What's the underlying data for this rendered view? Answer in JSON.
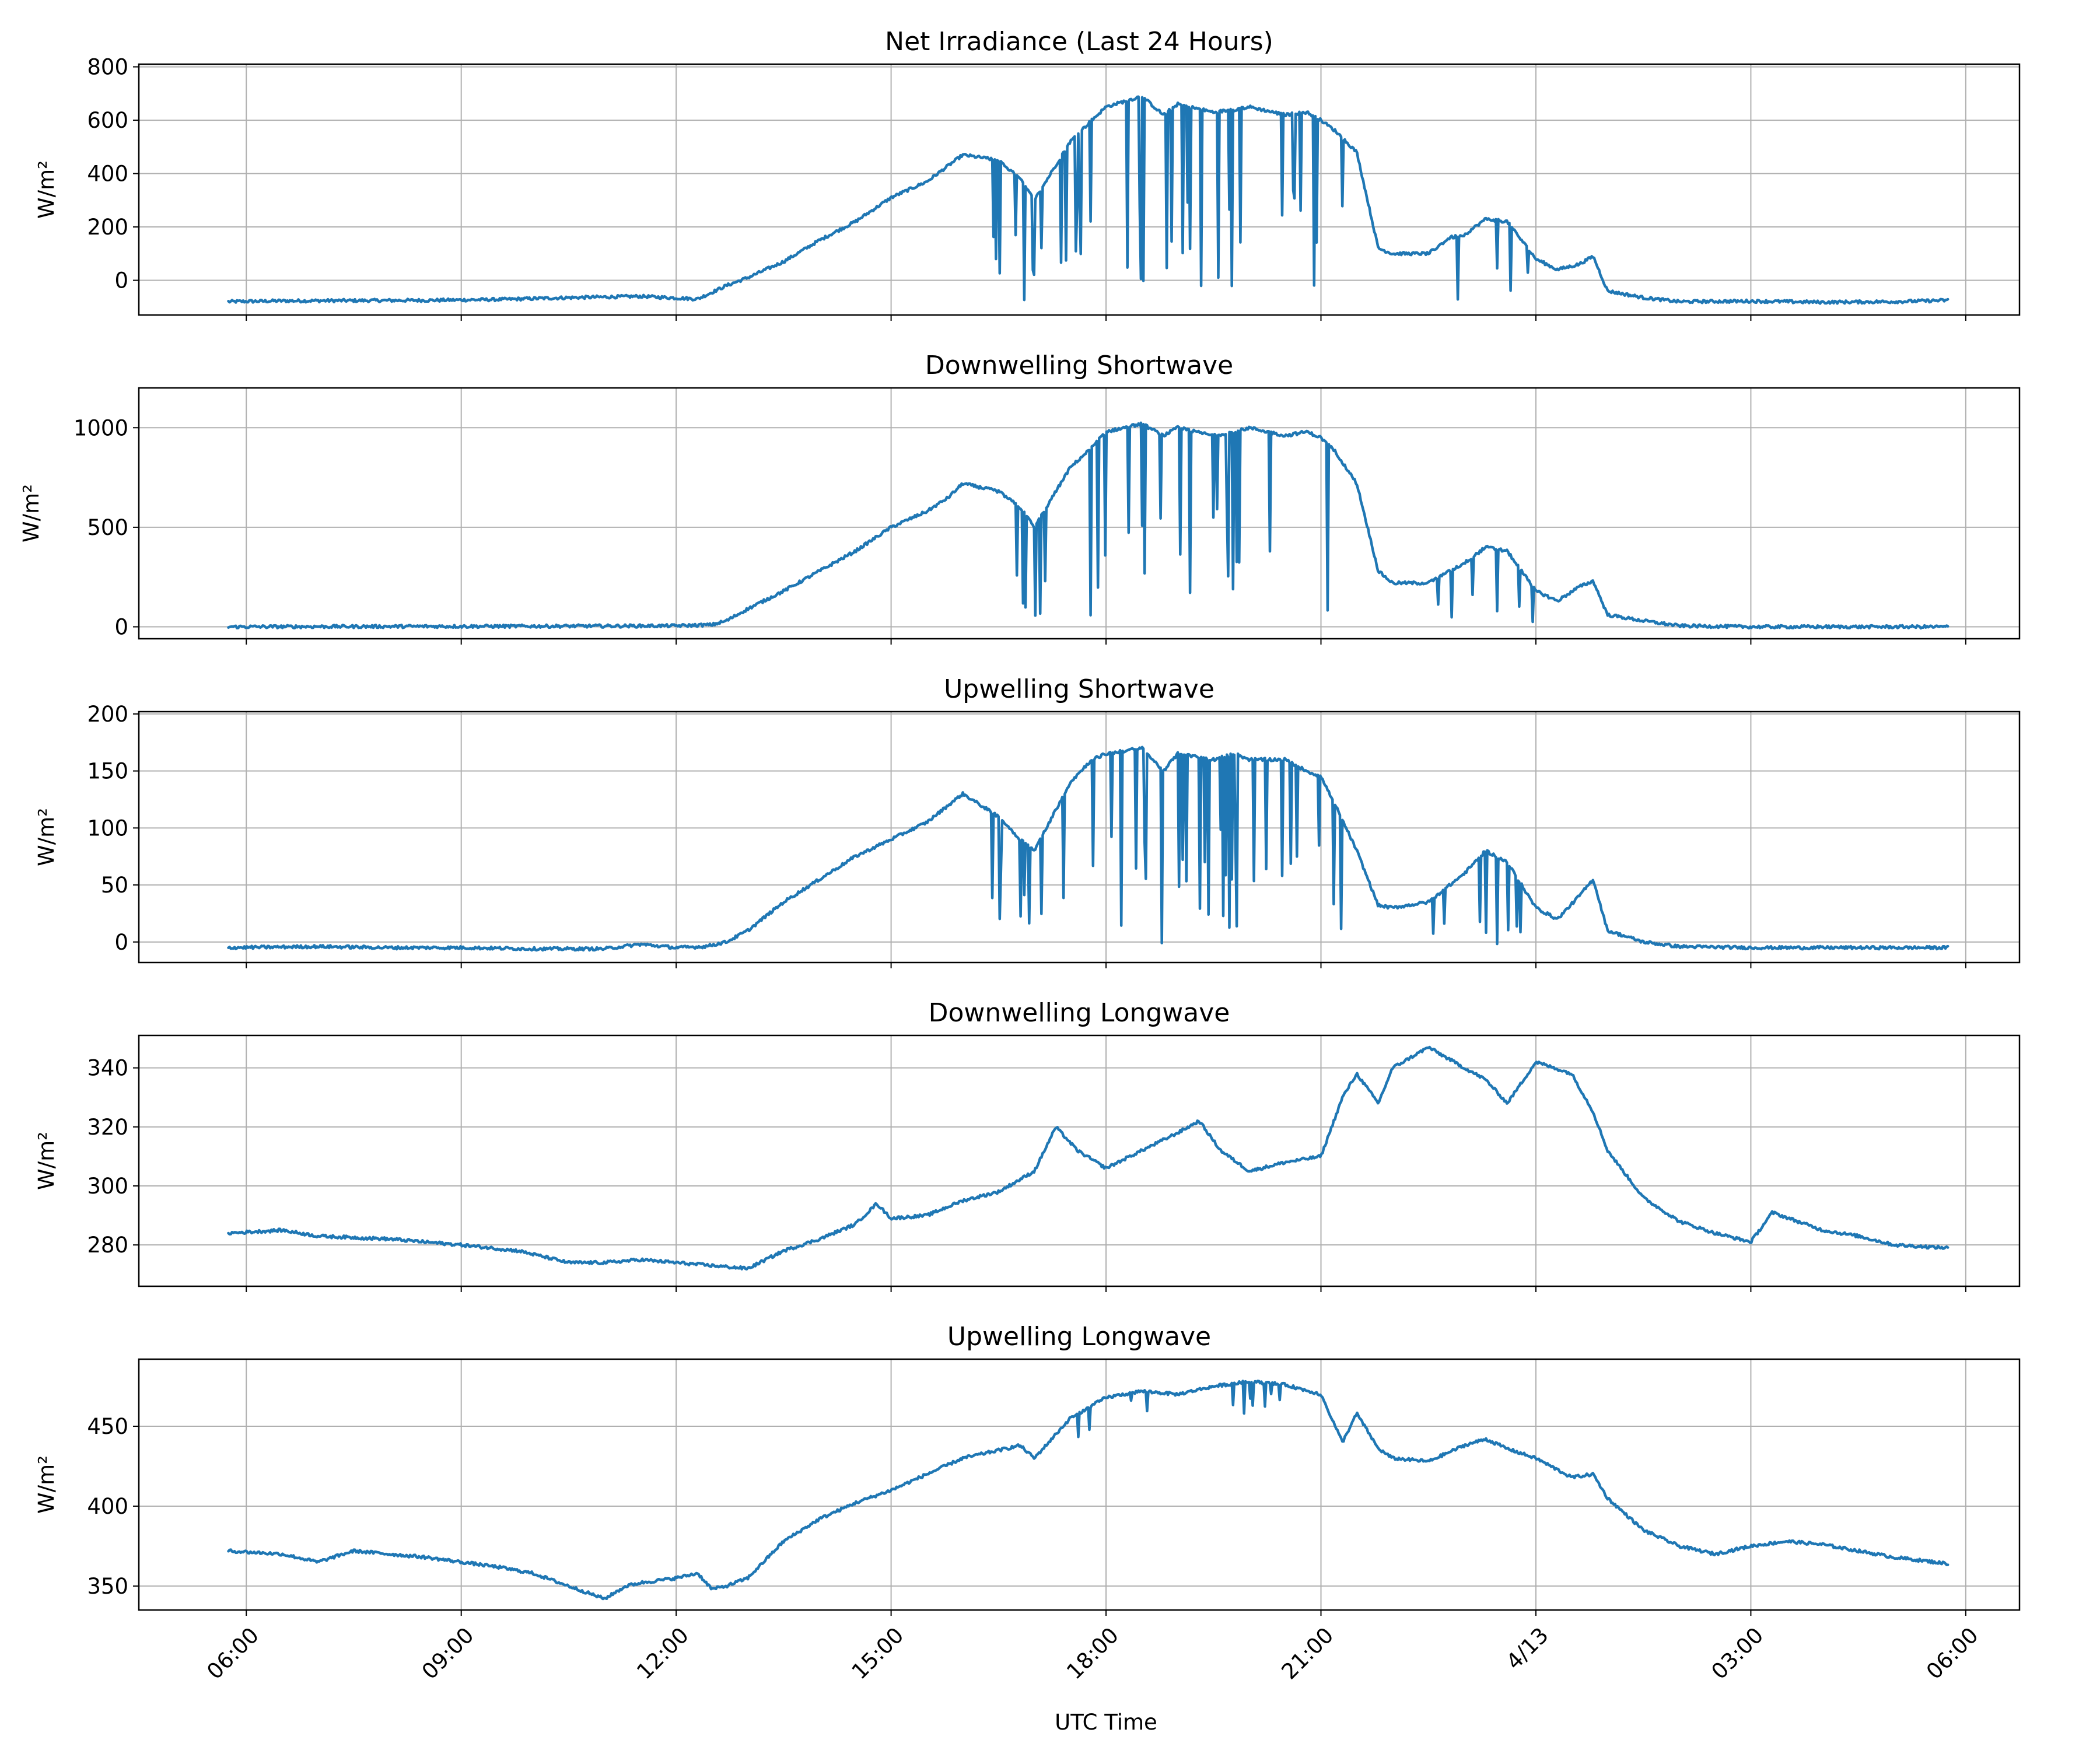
{
  "figure": {
    "xlabel": "UTC Time",
    "x_tick_labels": [
      "06:00",
      "09:00",
      "12:00",
      "15:00",
      "18:00",
      "21:00",
      "4/13",
      "03:00",
      "06:00"
    ],
    "x_tick_hours": [
      6,
      9,
      12,
      15,
      18,
      21,
      24,
      27,
      30
    ],
    "x_range_hours": [
      4.5,
      30.75
    ],
    "data_start_hour": 5.75,
    "data_end_hour": 29.75,
    "line_color": "#1f77b4",
    "grid": true
  },
  "chart_data": [
    {
      "type": "line",
      "title": "Net Irradiance (Last 24 Hours)",
      "ylabel": "W/m²",
      "ylim": [
        -130,
        810
      ],
      "yticks": [
        0,
        200,
        400,
        600,
        800
      ],
      "x_hours": [
        5.75,
        6.5,
        7.5,
        8.5,
        9.5,
        10.5,
        11.5,
        12.3,
        12.7,
        13.0,
        13.5,
        14.0,
        14.5,
        15.0,
        15.5,
        15.8,
        16.0,
        16.5,
        16.8,
        17.0,
        17.5,
        17.8,
        18.0,
        18.5,
        18.8,
        19.0,
        19.5,
        19.8,
        20.0,
        20.5,
        20.8,
        21.0,
        21.2,
        21.5,
        21.8,
        22.0,
        22.5,
        22.8,
        23.0,
        23.3,
        23.6,
        24.0,
        24.3,
        24.6,
        24.8,
        25.0,
        25.5,
        26.0,
        27.0,
        28.0,
        29.0,
        29.75
      ],
      "values": [
        -80,
        -77,
        -76,
        -75,
        -72,
        -65,
        -60,
        -70,
        -20,
        10,
        70,
        150,
        220,
        310,
        370,
        430,
        470,
        450,
        380,
        300,
        520,
        600,
        650,
        690,
        620,
        660,
        630,
        640,
        650,
        620,
        630,
        600,
        560,
        480,
        120,
        100,
        100,
        160,
        170,
        230,
        220,
        80,
        40,
        60,
        90,
        -40,
        -65,
        -80,
        -78,
        -82,
        -80,
        -75
      ]
    },
    {
      "type": "line",
      "title": "Downwelling Shortwave",
      "ylabel": "W/m²",
      "ylim": [
        -60,
        1200
      ],
      "yticks": [
        0,
        500,
        1000
      ],
      "x_hours": [
        5.75,
        8.0,
        10.0,
        12.0,
        12.5,
        12.7,
        13.0,
        13.5,
        14.0,
        14.5,
        15.0,
        15.5,
        15.8,
        16.0,
        16.5,
        16.8,
        17.0,
        17.5,
        17.8,
        18.0,
        18.5,
        18.8,
        19.0,
        19.5,
        19.8,
        20.0,
        20.5,
        20.8,
        21.0,
        21.2,
        21.5,
        21.8,
        22.0,
        22.5,
        22.8,
        23.0,
        23.3,
        23.6,
        24.0,
        24.3,
        24.6,
        24.8,
        25.0,
        25.5,
        26.0,
        27.0,
        28.0,
        29.0,
        29.75
      ],
      "values": [
        0,
        2,
        3,
        5,
        10,
        30,
        90,
        180,
        280,
        380,
        500,
        580,
        650,
        720,
        680,
        600,
        500,
        800,
        900,
        980,
        1020,
        960,
        1000,
        960,
        980,
        1000,
        960,
        980,
        950,
        880,
        720,
        280,
        220,
        220,
        280,
        320,
        400,
        380,
        180,
        130,
        200,
        230,
        60,
        30,
        5,
        0,
        0,
        0,
        0
      ]
    },
    {
      "type": "line",
      "title": "Upwelling Shortwave",
      "ylabel": "W/m²",
      "ylim": [
        -18,
        202
      ],
      "yticks": [
        0,
        50,
        100,
        150,
        200
      ],
      "x_hours": [
        5.75,
        7.0,
        8.0,
        9.0,
        10.0,
        11.0,
        11.5,
        12.0,
        12.4,
        12.7,
        13.0,
        13.5,
        14.0,
        14.5,
        15.0,
        15.5,
        15.8,
        16.0,
        16.5,
        16.8,
        17.0,
        17.5,
        17.8,
        18.0,
        18.5,
        18.8,
        19.0,
        19.5,
        19.8,
        20.0,
        20.5,
        20.8,
        21.0,
        21.2,
        21.5,
        21.8,
        22.0,
        22.5,
        22.8,
        23.0,
        23.3,
        23.6,
        24.0,
        24.3,
        24.6,
        24.8,
        25.0,
        25.5,
        26.0,
        27.0,
        28.0,
        29.0,
        29.75
      ],
      "values": [
        -5,
        -4,
        -5,
        -5,
        -6,
        -6,
        -2,
        -5,
        -4,
        0,
        10,
        35,
        55,
        75,
        90,
        105,
        120,
        130,
        110,
        90,
        80,
        140,
        160,
        165,
        170,
        150,
        165,
        160,
        165,
        160,
        160,
        150,
        145,
        120,
        80,
        32,
        30,
        35,
        50,
        60,
        80,
        70,
        30,
        20,
        40,
        55,
        10,
        0,
        -4,
        -5,
        -5,
        -5,
        -5
      ]
    },
    {
      "type": "line",
      "title": "Downwelling Longwave",
      "ylabel": "W/m²",
      "ylim": [
        266,
        351
      ],
      "yticks": [
        280,
        300,
        320,
        340
      ],
      "x_hours": [
        5.75,
        6.5,
        7.0,
        8.0,
        9.0,
        9.8,
        10.5,
        11.0,
        11.5,
        12.0,
        12.5,
        13.0,
        13.5,
        14.0,
        14.5,
        14.8,
        15.0,
        15.5,
        16.0,
        16.5,
        17.0,
        17.3,
        17.6,
        18.0,
        18.5,
        19.0,
        19.3,
        19.6,
        20.0,
        20.5,
        21.0,
        21.3,
        21.5,
        21.8,
        22.0,
        22.5,
        23.0,
        23.3,
        23.6,
        24.0,
        24.5,
        24.8,
        25.0,
        25.5,
        26.0,
        26.5,
        27.0,
        27.3,
        28.0,
        28.5,
        29.0,
        29.75
      ],
      "values": [
        284,
        285,
        283,
        282,
        280,
        278,
        274,
        274,
        275,
        274,
        273,
        272,
        278,
        282,
        287,
        294,
        289,
        290,
        295,
        298,
        305,
        320,
        312,
        306,
        312,
        318,
        322,
        312,
        305,
        308,
        310,
        330,
        338,
        328,
        340,
        347,
        340,
        336,
        328,
        342,
        338,
        325,
        312,
        296,
        288,
        284,
        281,
        291,
        285,
        283,
        280,
        279
      ]
    },
    {
      "type": "line",
      "title": "Upwelling Longwave",
      "ylabel": "W/m²",
      "ylim": [
        335,
        492
      ],
      "yticks": [
        350,
        400,
        450
      ],
      "x_hours": [
        5.75,
        6.5,
        7.0,
        7.5,
        8.0,
        8.5,
        9.0,
        9.5,
        10.0,
        10.5,
        11.0,
        11.3,
        11.5,
        12.0,
        12.3,
        12.5,
        12.7,
        13.0,
        13.5,
        14.0,
        14.5,
        15.0,
        15.5,
        16.0,
        16.5,
        16.8,
        17.0,
        17.5,
        18.0,
        18.5,
        19.0,
        19.5,
        20.0,
        20.5,
        21.0,
        21.3,
        21.5,
        21.8,
        22.0,
        22.5,
        23.0,
        23.3,
        23.6,
        24.0,
        24.5,
        24.8,
        25.0,
        25.5,
        26.0,
        26.5,
        27.0,
        27.5,
        28.0,
        28.5,
        29.0,
        29.75
      ],
      "values": [
        372,
        370,
        365,
        372,
        370,
        368,
        365,
        362,
        358,
        350,
        342,
        350,
        352,
        355,
        358,
        348,
        350,
        355,
        378,
        392,
        402,
        410,
        420,
        430,
        435,
        438,
        430,
        455,
        468,
        472,
        470,
        475,
        478,
        476,
        470,
        440,
        458,
        436,
        430,
        428,
        438,
        442,
        436,
        430,
        418,
        420,
        405,
        385,
        375,
        370,
        375,
        378,
        376,
        372,
        368,
        364
      ]
    }
  ]
}
